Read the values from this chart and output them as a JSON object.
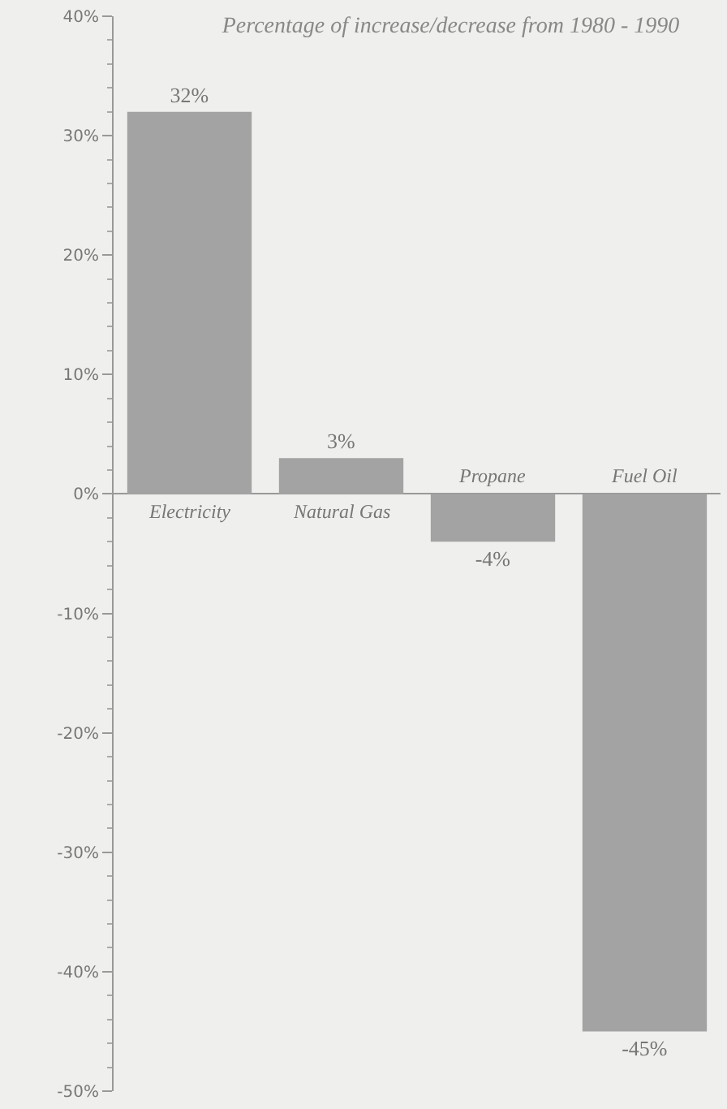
{
  "chart_data": {
    "type": "bar",
    "title": "Percentage of increase/decrease from 1980 - 1990",
    "categories": [
      "Electricity",
      "Natural Gas",
      "Propane",
      "Fuel Oil"
    ],
    "values": [
      32,
      3,
      -4,
      -45
    ],
    "value_labels": [
      "32%",
      "3%",
      "-4%",
      "-45%"
    ],
    "color": "#a3a3a3",
    "ylim": [
      -50,
      40
    ],
    "yticks": [
      {
        "value": -50,
        "label": "-50%"
      },
      {
        "value": -40,
        "label": "-40%"
      },
      {
        "value": -30,
        "label": "-30%"
      },
      {
        "value": -20,
        "label": "-20%"
      },
      {
        "value": -10,
        "label": "-10%"
      },
      {
        "value": 0,
        "label": "0%"
      },
      {
        "value": 10,
        "label": "10%"
      },
      {
        "value": 20,
        "label": "20%"
      },
      {
        "value": 30,
        "label": "30%"
      },
      {
        "value": 40,
        "label": "40%"
      }
    ],
    "grid": false
  }
}
